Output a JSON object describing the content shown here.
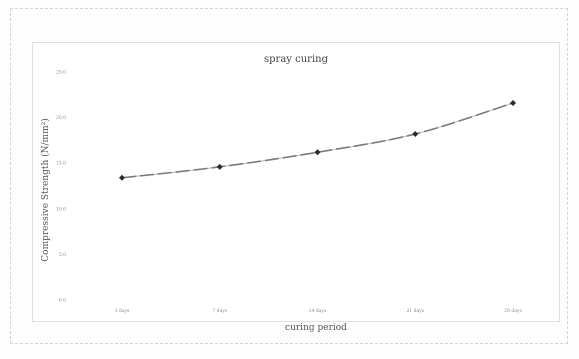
{
  "chart_data": {
    "type": "line",
    "title": "spray curing",
    "xlabel": "curing period",
    "ylabel": "Compressive Strength (N/mm²)",
    "categories": [
      "3 days",
      "7 days",
      "14 days",
      "21 days",
      "28 days"
    ],
    "values": [
      13.4,
      14.6,
      16.2,
      18.2,
      21.6
    ],
    "ylim": [
      0,
      25
    ],
    "yticks": [
      "0.0",
      "5.0",
      "10.0",
      "15.0",
      "20.0",
      "25.0"
    ],
    "grid": false,
    "legend": "none",
    "colors": {
      "line": "#7a7a7a",
      "marker": "#2a2a2a"
    }
  }
}
